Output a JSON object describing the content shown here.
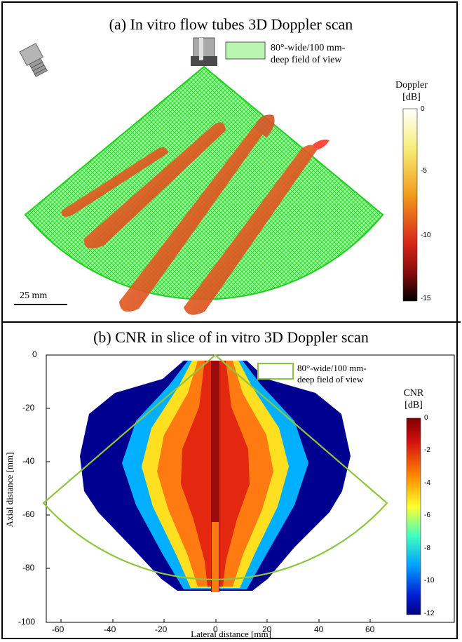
{
  "panel_a": {
    "title": "(a) In vitro flow tubes 3D Doppler scan",
    "legend_text": "80°-wide/100 mm-deep field of view",
    "legend_line1": "80°-wide/100 mm-",
    "legend_line2": "deep field of view",
    "scale_bar": "25 mm",
    "colorbar_title_1": "Doppler",
    "colorbar_title_2": "[dB]",
    "colorbar_ticks": [
      "0",
      "-5",
      "-10",
      "-15"
    ]
  },
  "panel_b": {
    "title": "(b) CNR in slice of in vitro 3D Doppler scan",
    "legend_line1": "80°-wide/100 mm-",
    "legend_line2": "deep field of view",
    "colorbar_title_1": "CNR",
    "colorbar_title_2": "[dB]",
    "colorbar_ticks": [
      "0",
      "-2",
      "-4",
      "-6",
      "-8",
      "-10",
      "-12"
    ]
  },
  "chart_data": [
    {
      "type": "heatmap",
      "title": "(b) CNR in slice of in vitro 3D Doppler scan",
      "xlabel": "Lateral distance [mm]",
      "ylabel": "Axial distance [mm]",
      "xlim": [
        -65,
        65
      ],
      "ylim": [
        -100,
        0
      ],
      "xticks": [
        -60,
        -40,
        -20,
        0,
        20,
        40,
        60
      ],
      "yticks": [
        0,
        -20,
        -40,
        -60,
        -80,
        -100
      ],
      "colorbar_label": "CNR [dB]",
      "colorbar_range": [
        -12,
        0
      ],
      "colorbar_ticks": [
        0,
        -2,
        -4,
        -6,
        -8,
        -10,
        -12
      ],
      "field_of_view": "80°-wide/100 mm-deep",
      "grid": false
    }
  ],
  "colors": {
    "fov_green": "#22dd22",
    "fov_outline_b": "#8cc63f",
    "tube_red": "#d8401e"
  },
  "icons": {
    "probe_a": "transducer-icon",
    "probe_b": "transducer-side-icon"
  }
}
